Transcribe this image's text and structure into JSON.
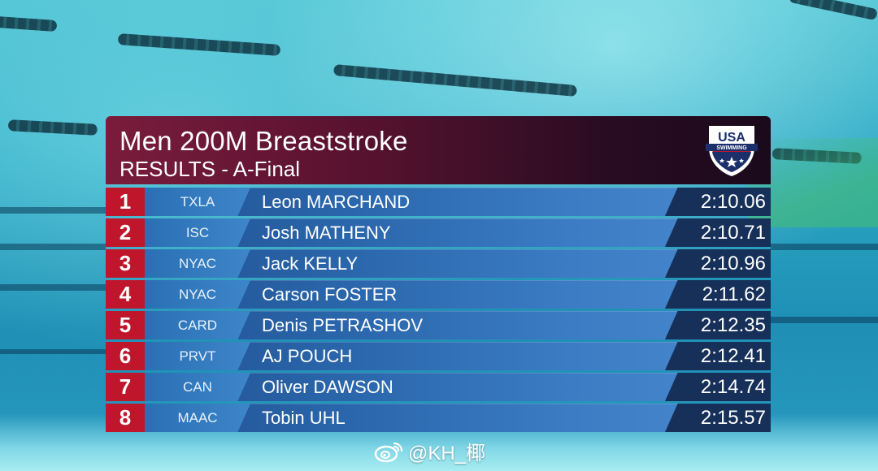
{
  "event": {
    "title": "Men 200M Breaststroke",
    "subtitle": "RESULTS - A-Final",
    "logo_text": "USA SWIMMING"
  },
  "results": [
    {
      "rank": "1",
      "team": "TXLA",
      "name": "Leon MARCHAND",
      "time": "2:10.06"
    },
    {
      "rank": "2",
      "team": "ISC",
      "name": "Josh MATHENY",
      "time": "2:10.71"
    },
    {
      "rank": "3",
      "team": "NYAC",
      "name": "Jack KELLY",
      "time": "2:10.96"
    },
    {
      "rank": "4",
      "team": "NYAC",
      "name": "Carson FOSTER",
      "time": "2:11.62"
    },
    {
      "rank": "5",
      "team": "CARD",
      "name": "Denis PETRASHOV",
      "time": "2:12.35"
    },
    {
      "rank": "6",
      "team": "PRVT",
      "name": "AJ POUCH",
      "time": "2:12.41"
    },
    {
      "rank": "7",
      "team": "CAN",
      "name": "Oliver DAWSON",
      "time": "2:14.74"
    },
    {
      "rank": "8",
      "team": "MAAC",
      "name": "Tobin UHL",
      "time": "2:15.57"
    }
  ],
  "watermark": {
    "text": "@KH_椰",
    "icon": "weibo-icon"
  },
  "colors": {
    "header_start": "#7a1c3c",
    "header_end": "#1a0a1c",
    "rank_red": "#c0162c",
    "row_blue": "#2a65aa",
    "time_navy": "#16305a"
  }
}
